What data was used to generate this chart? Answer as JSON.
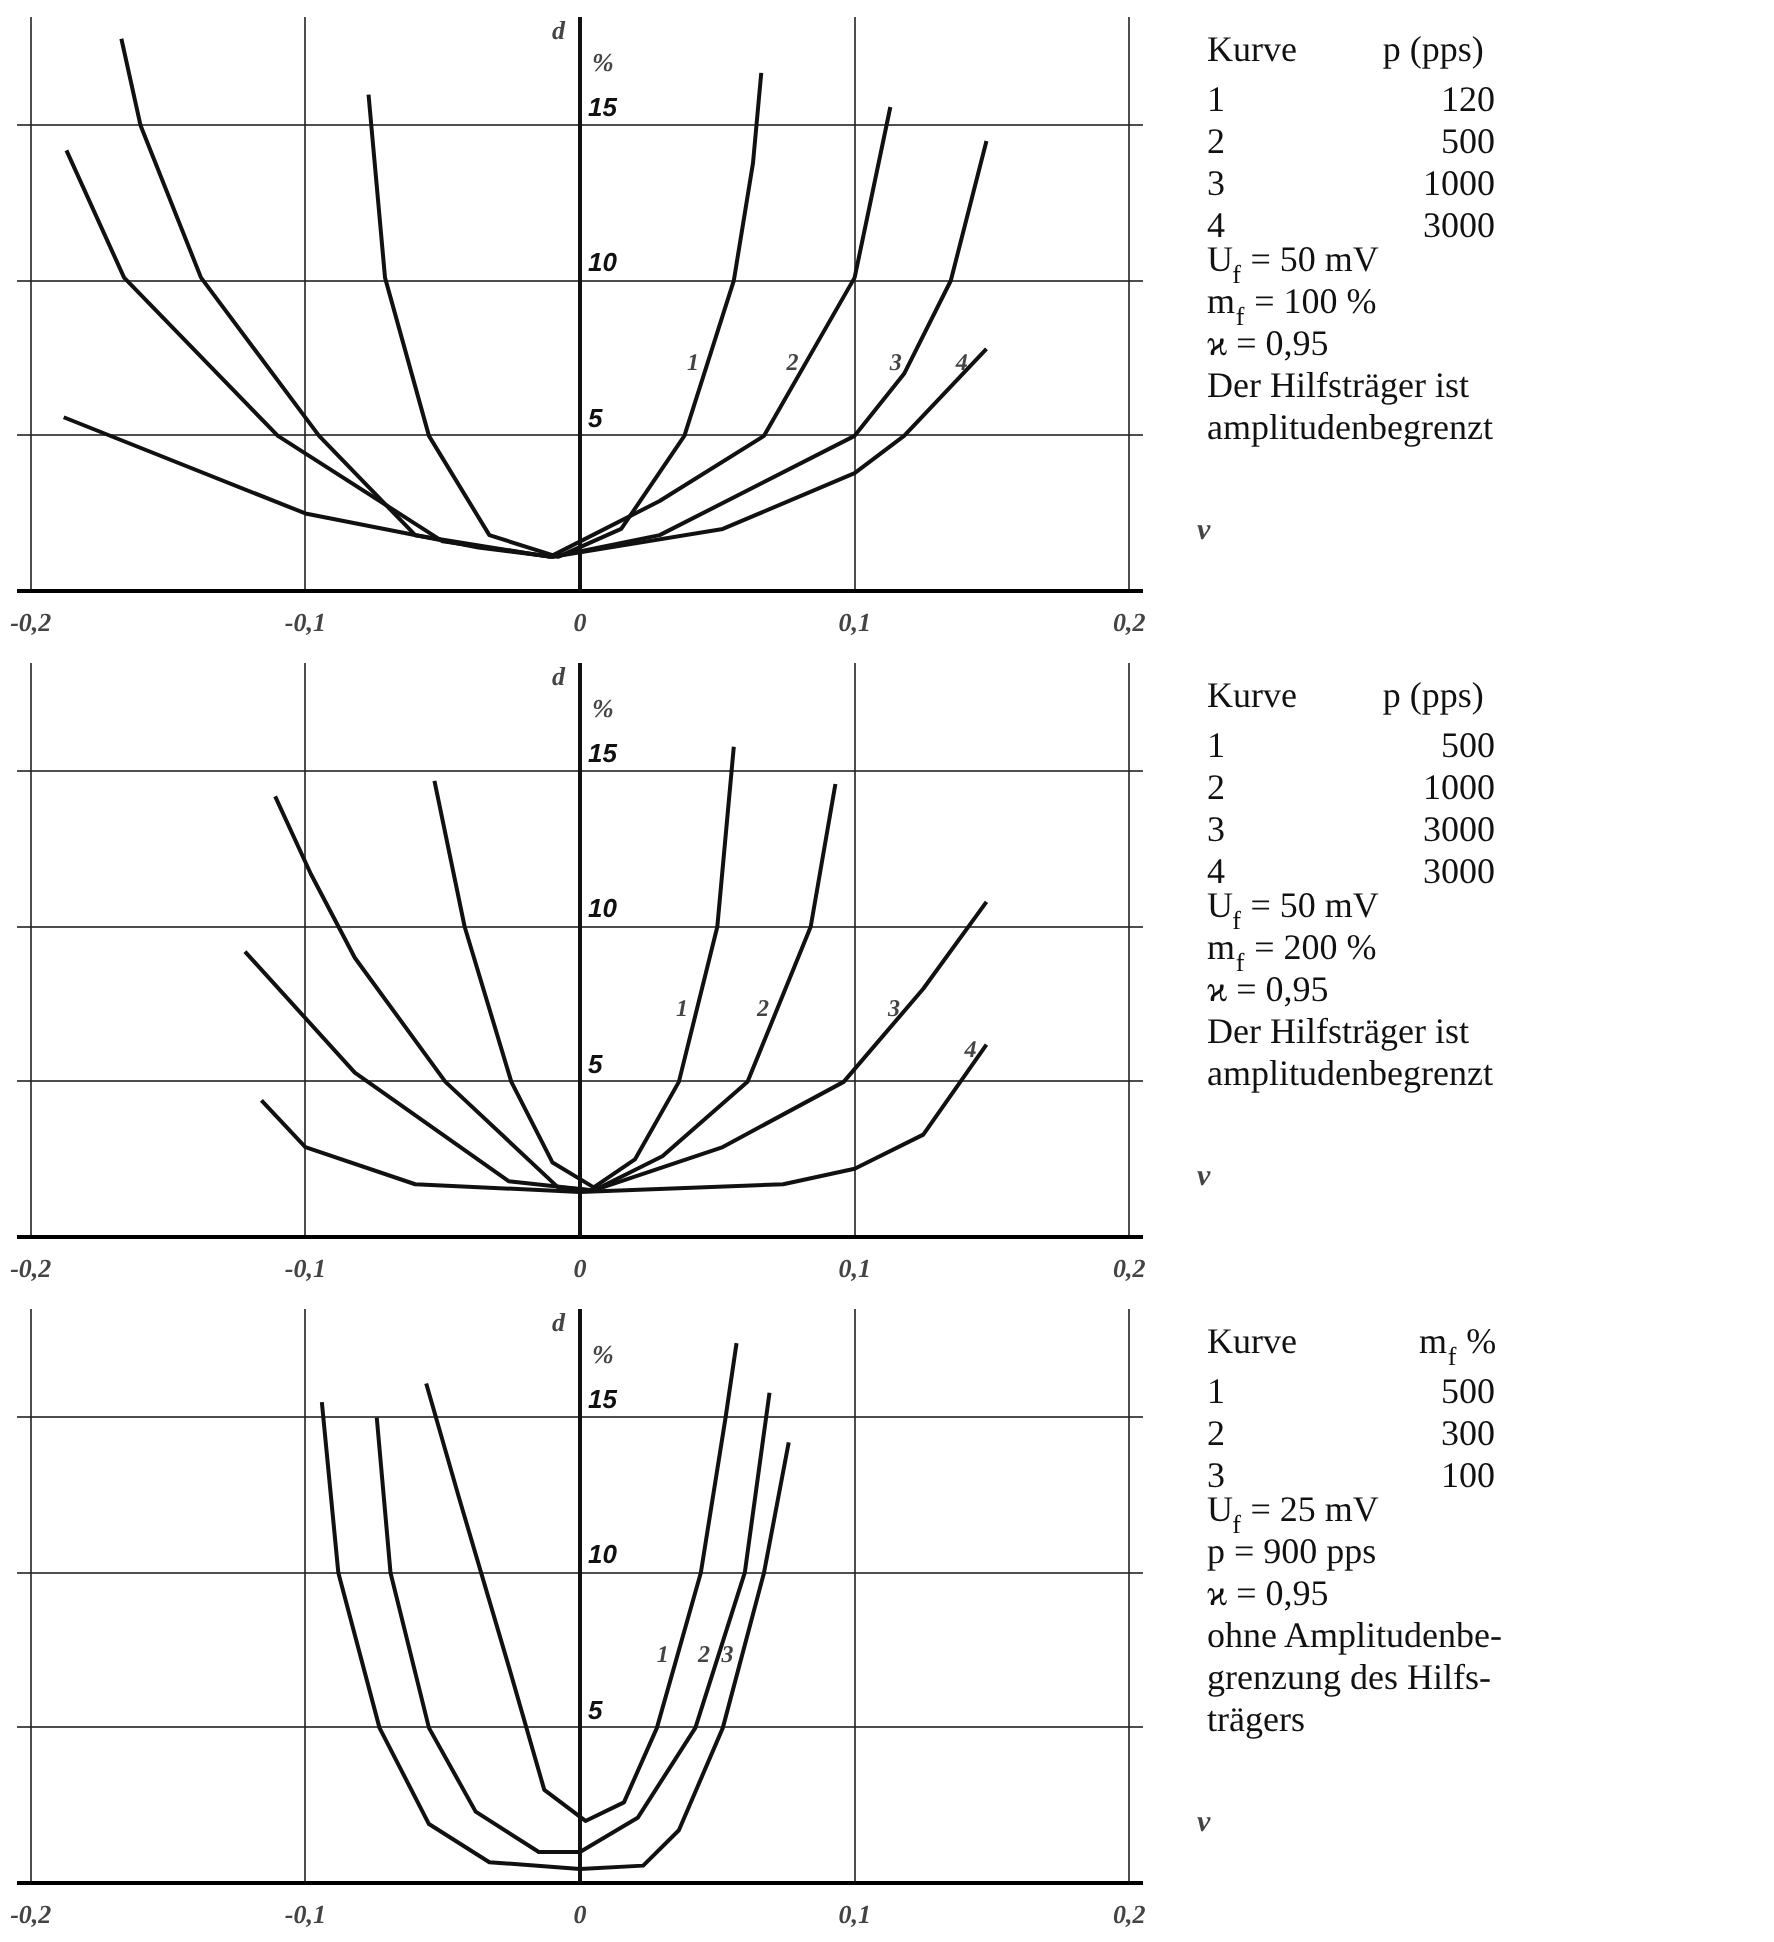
{
  "chart_data": [
    {
      "type": "line",
      "ylabel": "d\n%",
      "xlabel": "v",
      "xlim": [
        -0.205,
        0.205
      ],
      "ylim": [
        0,
        18.5
      ],
      "xticks": [
        {
          "value": -0.2,
          "label": "-0,2"
        },
        {
          "value": -0.1,
          "label": "-0,1"
        },
        0,
        {
          "value": 0.1,
          "label": "0,1"
        },
        {
          "value": 0.2,
          "label": "0,2"
        }
      ],
      "yticks": [
        5,
        10,
        15
      ],
      "grid": true,
      "line_style": "solid",
      "marker": "none",
      "series": [
        {
          "name": "1",
          "color": "#111111",
          "x": [
            -0.077,
            -0.071,
            -0.055,
            -0.033,
            -0.008,
            0.015,
            0.038,
            0.056,
            0.063,
            0.066
          ],
          "values": [
            16.0,
            10.1,
            5.0,
            1.8,
            1.1,
            2.0,
            5.0,
            10.0,
            13.8,
            16.7
          ]
        },
        {
          "name": "2",
          "color": "#111111",
          "x": [
            -0.167,
            -0.16,
            -0.138,
            -0.095,
            -0.06,
            -0.011,
            0.029,
            0.067,
            0.1,
            0.113
          ],
          "values": [
            17.8,
            15.0,
            10.1,
            5.0,
            1.8,
            1.1,
            2.9,
            5.0,
            10.1,
            15.6
          ]
        },
        {
          "name": "3",
          "color": "#111111",
          "x": [
            -0.187,
            -0.166,
            -0.11,
            -0.05,
            -0.01,
            0.029,
            0.1,
            0.118,
            0.135,
            0.148
          ],
          "values": [
            14.2,
            10.1,
            5.0,
            1.6,
            1.1,
            1.8,
            5.0,
            7.0,
            10.0,
            14.5
          ]
        },
        {
          "name": "4",
          "color": "#111111",
          "x": [
            -0.188,
            -0.1,
            -0.037,
            -0.01,
            0.052,
            0.1,
            0.118,
            0.148
          ],
          "values": [
            5.6,
            2.5,
            1.4,
            1.1,
            2.0,
            3.8,
            5.0,
            7.8
          ]
        }
      ],
      "annotations": [
        "Kurve\tp (pps)",
        "1\t120",
        "2\t500",
        "3\t1000",
        "4\t3000",
        "U$_{f}$ = 50 mV",
        "m$_{f}$ = 100 %",
        "ϰ  = 0,95",
        "Der Hilfsträger ist",
        "amplitudenbegrenzt"
      ]
    },
    {
      "type": "line",
      "ylabel": "d\n%",
      "xlabel": "v",
      "xlim": [
        -0.205,
        0.205
      ],
      "ylim": [
        0,
        18.5
      ],
      "xticks": [
        {
          "value": -0.2,
          "label": "-0,2"
        },
        {
          "value": -0.1,
          "label": "-0,1"
        },
        0,
        {
          "value": 0.1,
          "label": "0,1"
        },
        {
          "value": 0.2,
          "label": "0,2"
        }
      ],
      "yticks": [
        5,
        10,
        15
      ],
      "grid": true,
      "line_style": "solid",
      "marker": "none",
      "series": [
        {
          "name": "1",
          "color": "#111111",
          "x": [
            -0.053,
            -0.042,
            -0.025,
            -0.01,
            0.005,
            0.02,
            0.036,
            0.05,
            0.056
          ],
          "values": [
            14.7,
            10.0,
            5.0,
            2.4,
            1.6,
            2.5,
            5.0,
            10.0,
            15.8
          ]
        },
        {
          "name": "2",
          "color": "#111111",
          "x": [
            -0.111,
            -0.098,
            -0.082,
            -0.049,
            -0.008,
            0.005,
            0.03,
            0.061,
            0.084,
            0.093
          ],
          "values": [
            14.2,
            11.7,
            9.0,
            5.0,
            1.6,
            1.5,
            2.6,
            5.0,
            10.0,
            14.6
          ]
        },
        {
          "name": "3",
          "color": "#111111",
          "x": [
            -0.122,
            -0.082,
            -0.026,
            0.005,
            0.052,
            0.096,
            0.125,
            0.148
          ],
          "values": [
            9.2,
            5.3,
            1.8,
            1.5,
            2.9,
            5.0,
            8.0,
            10.8
          ]
        },
        {
          "name": "4",
          "color": "#111111",
          "x": [
            -0.116,
            -0.1,
            -0.06,
            0.0,
            0.074,
            0.1,
            0.125,
            0.148
          ],
          "values": [
            4.4,
            2.9,
            1.7,
            1.45,
            1.7,
            2.2,
            3.3,
            6.2
          ]
        }
      ],
      "annotations": [
        "Kurve\tp (pps)",
        "1\t500",
        "2\t1000",
        "3\t3000",
        "4\t3000",
        "U$_{f}$ = 50 mV",
        "m$_{f}$ = 200 %",
        "ϰ  = 0,95",
        "Der Hilfsträger ist",
        "amplitudenbegrenzt"
      ]
    },
    {
      "type": "line",
      "ylabel": "d\n%",
      "xlabel": "v",
      "xlim": [
        -0.205,
        0.205
      ],
      "ylim": [
        0,
        18.5
      ],
      "xticks": [
        {
          "value": -0.2,
          "label": "-0,2"
        },
        {
          "value": -0.1,
          "label": "-0,1"
        },
        0,
        {
          "value": 0.1,
          "label": "0,1"
        },
        {
          "value": 0.2,
          "label": "0,2"
        }
      ],
      "yticks": [
        5,
        10,
        15
      ],
      "grid": true,
      "line_style": "solid",
      "marker": "none",
      "series": [
        {
          "name": "1",
          "color": "#111111",
          "x": [
            -0.056,
            -0.044,
            -0.026,
            -0.013,
            0.002,
            0.016,
            0.028,
            0.044,
            0.053,
            0.057
          ],
          "values": [
            16.1,
            12.4,
            7.0,
            3.0,
            2.0,
            2.6,
            5.0,
            10.0,
            15.0,
            17.4
          ]
        },
        {
          "name": "2",
          "color": "#111111",
          "x": [
            -0.074,
            -0.069,
            -0.055,
            -0.038,
            -0.015,
            0.0,
            0.021,
            0.042,
            0.06,
            0.069
          ],
          "values": [
            15.0,
            10.0,
            5.0,
            2.3,
            1.0,
            1.0,
            2.1,
            5.0,
            10.0,
            15.8
          ]
        },
        {
          "name": "3",
          "color": "#111111",
          "x": [
            -0.094,
            -0.088,
            -0.073,
            -0.055,
            -0.033,
            0.0,
            0.023,
            0.036,
            0.052,
            0.067,
            0.076
          ],
          "values": [
            15.5,
            10.0,
            5.0,
            1.9,
            0.67,
            0.45,
            0.56,
            1.7,
            5.0,
            10.0,
            14.2
          ]
        }
      ],
      "annotations": [
        "Kurve\tm$_{f}$ %",
        "1\t500",
        "2\t300",
        "3\t100",
        "U$_{f}$ = 25 mV",
        "p  = 900 pps",
        "ϰ  = 0,95",
        "ohne Amplitudenbe-",
        "grenzung des Hilfs-",
        "trägers"
      ]
    }
  ]
}
